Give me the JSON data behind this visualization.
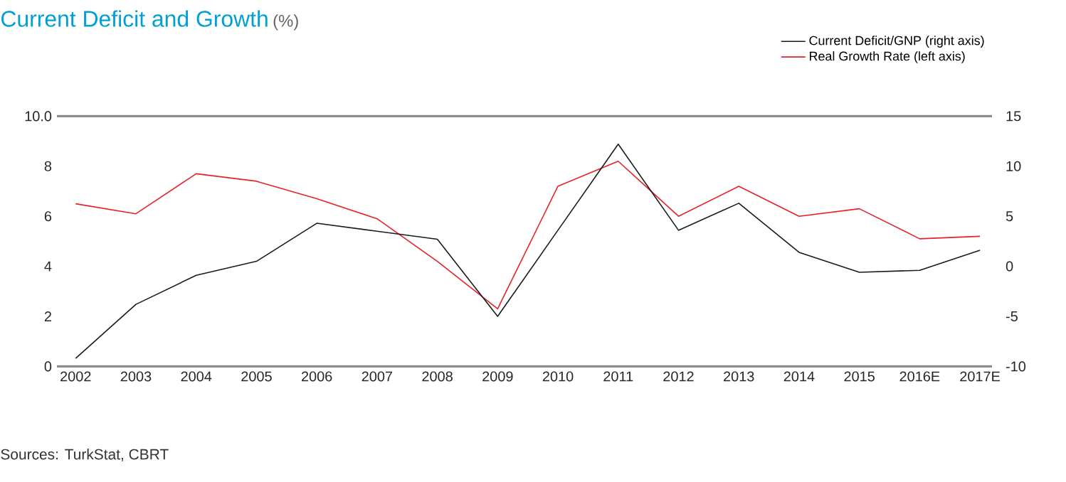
{
  "chart_data": {
    "type": "line",
    "title": "Current Deficit and Growth",
    "subtitle": "(%)",
    "categories": [
      "2002",
      "2003",
      "2004",
      "2005",
      "2006",
      "2007",
      "2008",
      "2009",
      "2010",
      "2011",
      "2012",
      "2013",
      "2014",
      "2015",
      "2016E",
      "2017E"
    ],
    "series": [
      {
        "name": "Current Deficit/GNP (right axis)",
        "color": "#1a1a1a",
        "axis": "y2",
        "values": [
          -9.2,
          -3.8,
          -0.9,
          0.5,
          4.3,
          3.5,
          2.7,
          -5.0,
          3.6,
          12.2,
          3.6,
          6.3,
          1.4,
          -0.6,
          -0.4,
          1.6
        ]
      },
      {
        "name": "Real Growth Rate (left axis)",
        "color": "#e8202a",
        "values": [
          6.5,
          6.1,
          7.7,
          7.4,
          6.7,
          5.9,
          4.2,
          2.3,
          7.2,
          8.2,
          6.0,
          7.2,
          6.0,
          6.3,
          5.1,
          5.2
        ]
      }
    ],
    "ylim": [
      0,
      10
    ],
    "yticks": [
      0,
      2,
      4,
      6,
      8,
      {
        "value": 10,
        "label": "10.0"
      }
    ],
    "y2lim": [
      -10,
      15
    ],
    "y2ticks": [
      -10,
      -5,
      0,
      5,
      10,
      15
    ],
    "legend": "top right",
    "annotations": [
      "Sources: TurkStat, CBRT"
    ]
  }
}
